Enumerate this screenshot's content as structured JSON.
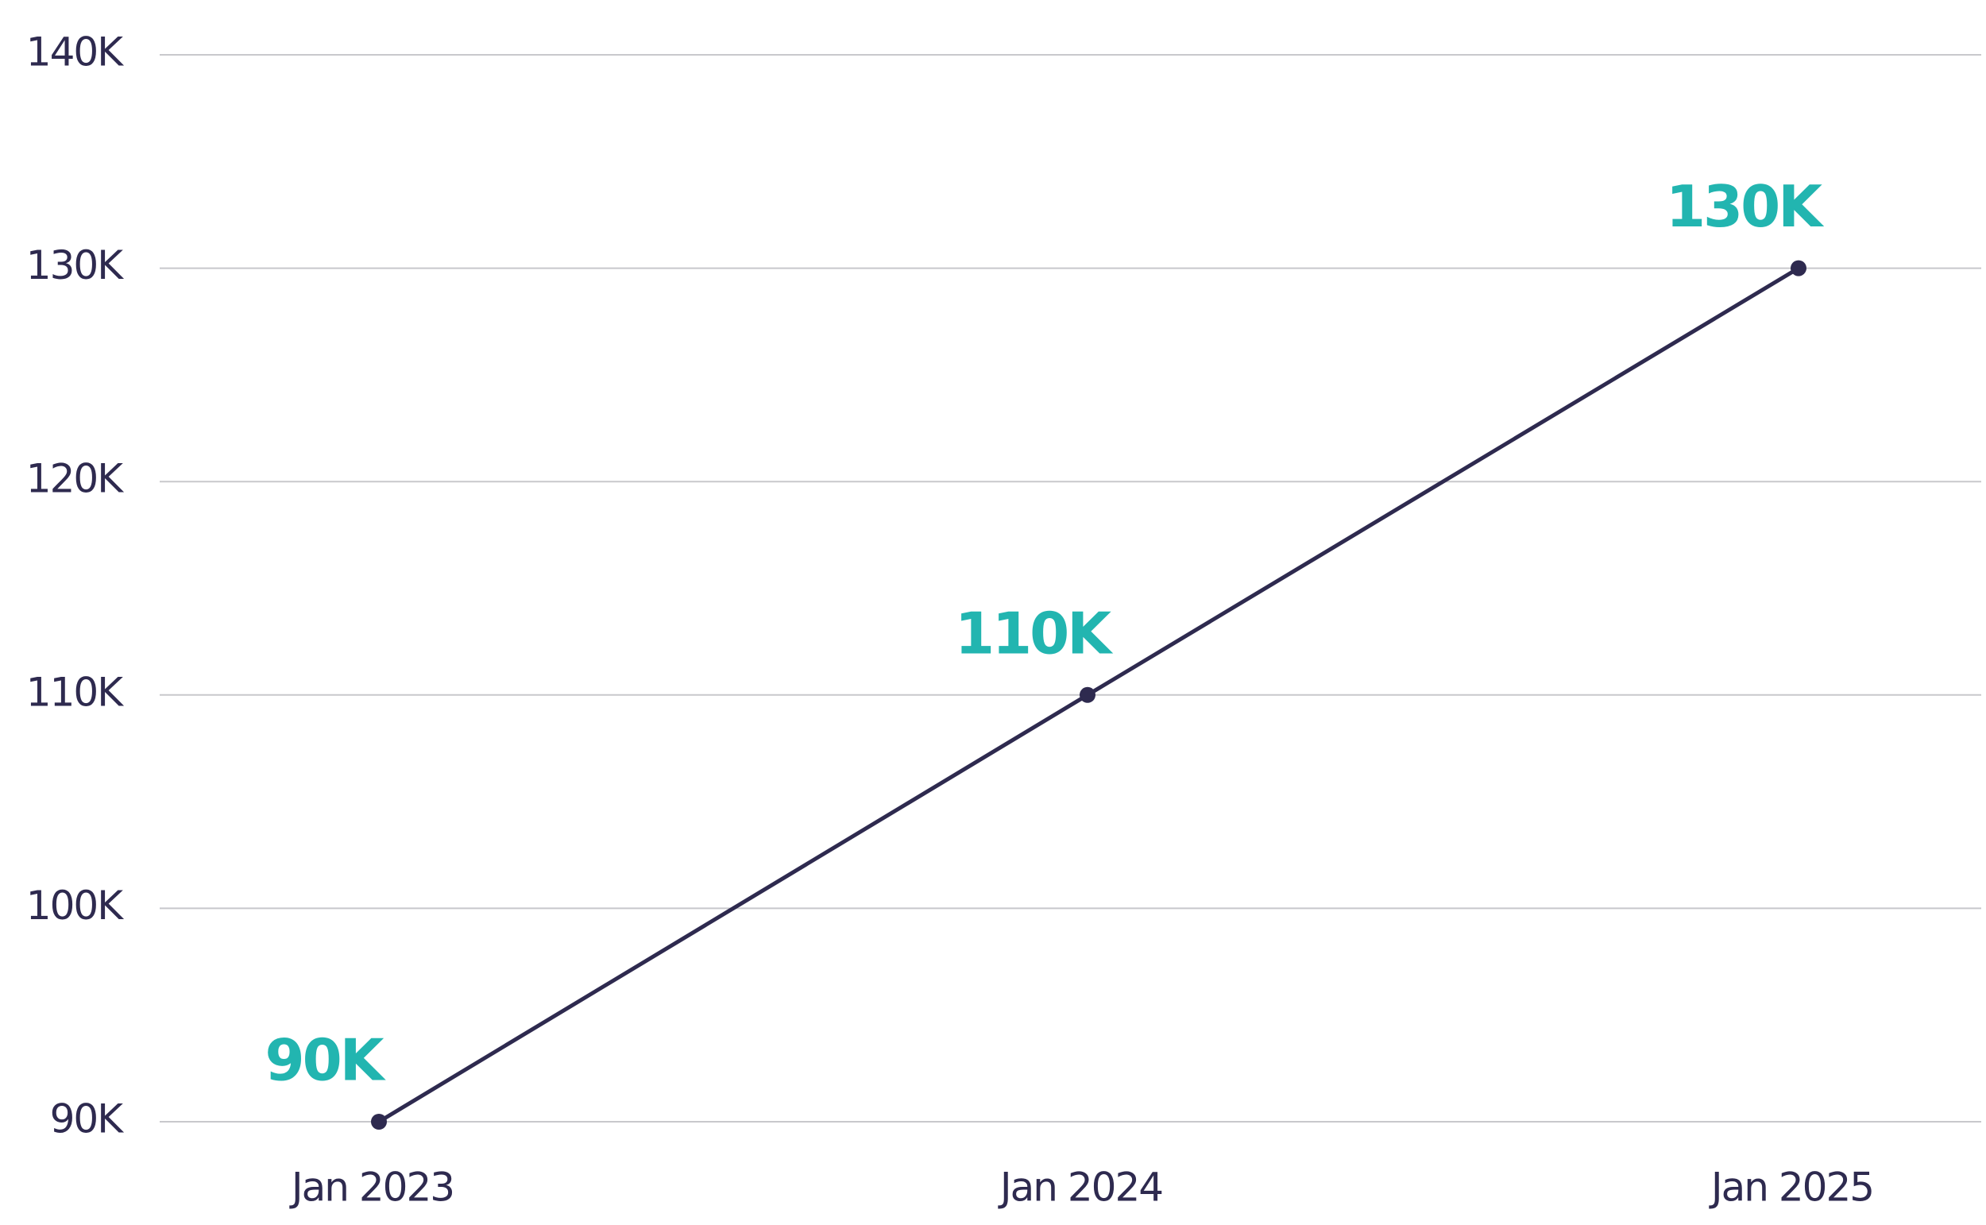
{
  "chart_data": {
    "type": "line",
    "categories": [
      "Jan 2023",
      "Jan 2024",
      "Jan 2025"
    ],
    "values": [
      90000,
      110000,
      130000
    ],
    "value_labels": [
      "90K",
      "110K",
      "130K"
    ],
    "color": "#2e2a4f",
    "label_color": "#22b5b0",
    "ylim": [
      90000,
      140000
    ],
    "yticks": [
      {
        "value": 90000,
        "label": "90K"
      },
      {
        "value": 100000,
        "label": "100K"
      },
      {
        "value": 110000,
        "label": "110K"
      },
      {
        "value": 120000,
        "label": "120K"
      },
      {
        "value": 130000,
        "label": "130K"
      },
      {
        "value": 140000,
        "label": "140K"
      }
    ],
    "grid": true
  }
}
